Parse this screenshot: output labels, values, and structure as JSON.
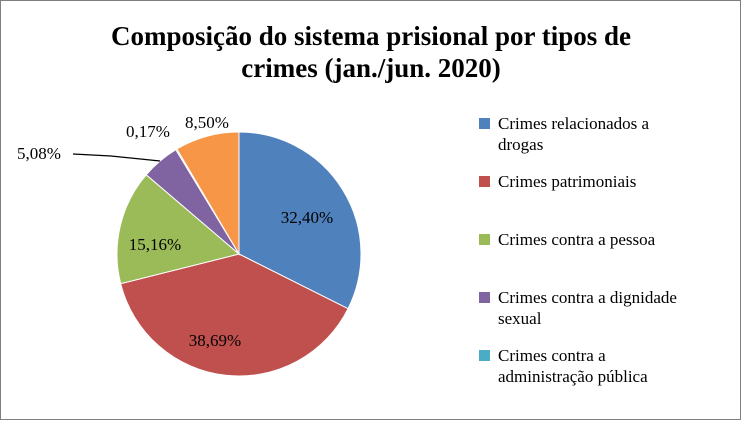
{
  "chart_data": {
    "type": "pie",
    "title_lines": [
      "Composição do sistema prisional por tipos de",
      "crimes (jan./jun. 2020)"
    ],
    "slices": [
      {
        "name_lines": [
          "Crimes relacionados a",
          "drogas"
        ],
        "value": 32.4,
        "label": "32,40%",
        "color": "#4f81bd"
      },
      {
        "name_lines": [
          "Crimes patrimoniais"
        ],
        "value": 38.69,
        "label": "38,69%",
        "color": "#c0504d"
      },
      {
        "name_lines": [
          "Crimes contra a pessoa"
        ],
        "value": 15.16,
        "label": "15,16%",
        "color": "#9bbb59"
      },
      {
        "name_lines": [
          "Crimes contra a dignidade",
          "sexual"
        ],
        "value": 5.08,
        "label": "5,08%",
        "color": "#8064a2"
      },
      {
        "name_lines": [
          "Crimes contra a",
          "administração pública"
        ],
        "value": 0.17,
        "label": "0,17%",
        "color": "#4bacc6"
      },
      {
        "name_lines": [],
        "value": 8.5,
        "label": "8,50%",
        "color": "#f79646"
      }
    ],
    "legend_position": "right"
  }
}
